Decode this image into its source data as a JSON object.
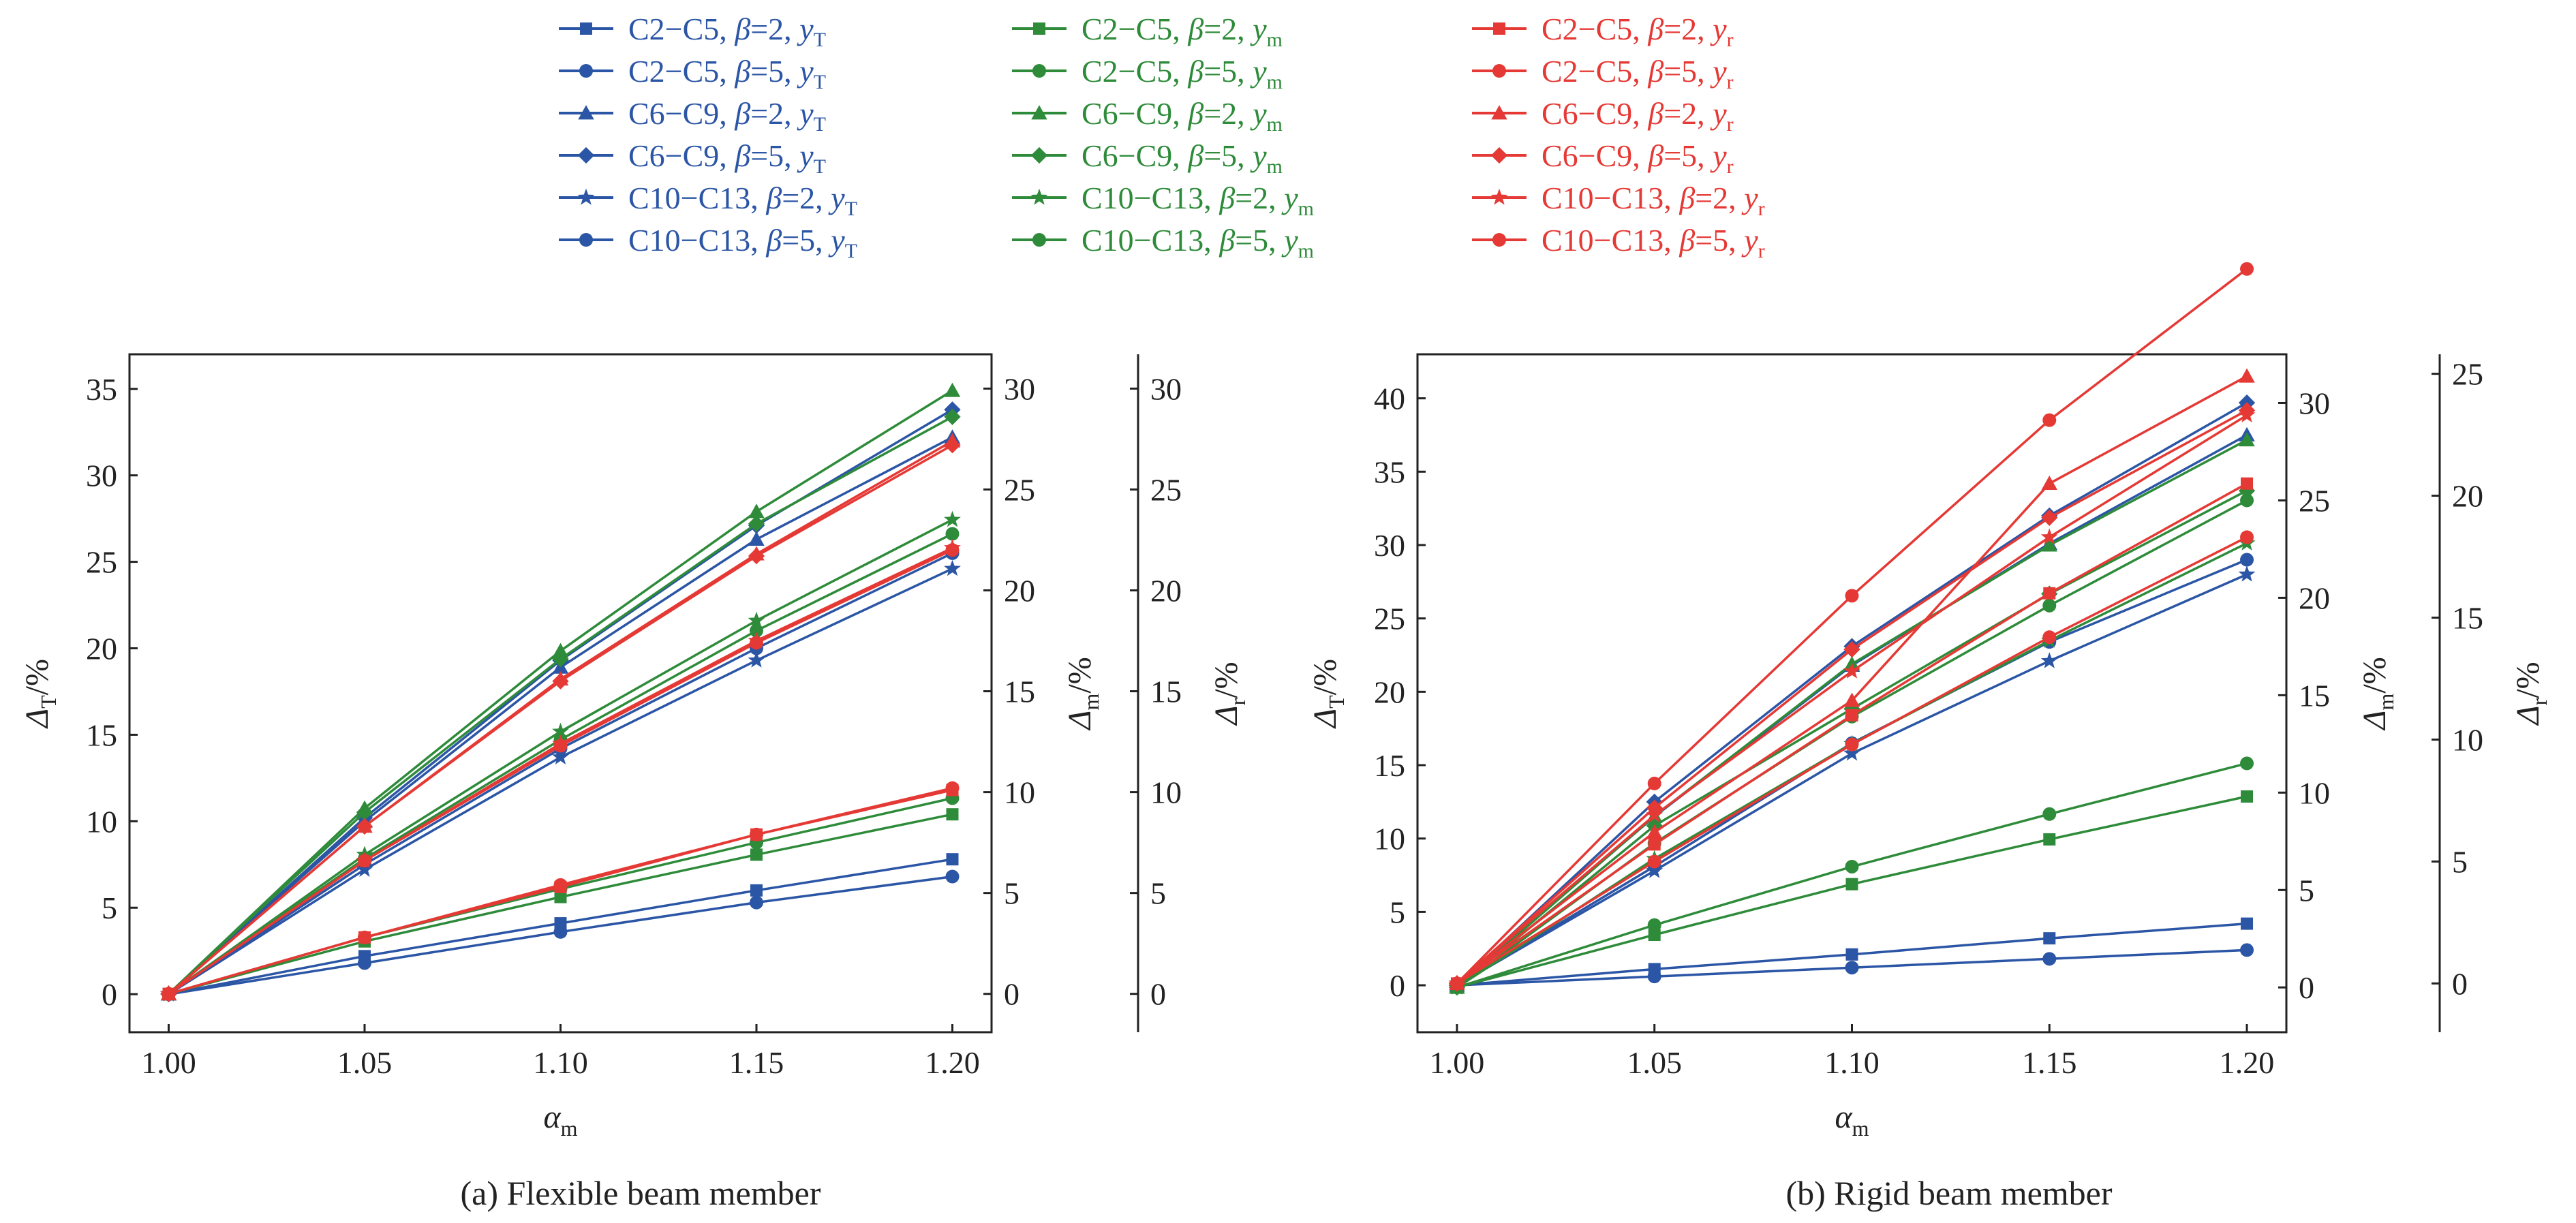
{
  "colors": {
    "T": "#2b55a5",
    "m": "#2e8b3a",
    "r": "#e53935",
    "axis": "#222222"
  },
  "legend": {
    "columns": [
      {
        "color_key": "T",
        "entries": [
          {
            "label": "C2−C5, β=2, y",
            "sub": "T",
            "marker": "square"
          },
          {
            "label": "C2−C5, β=5, y",
            "sub": "T",
            "marker": "circle"
          },
          {
            "label": "C6−C9, β=2, y",
            "sub": "T",
            "marker": "triangle"
          },
          {
            "label": "C6−C9, β=5, y",
            "sub": "T",
            "marker": "diamond"
          },
          {
            "label": "C10−C13, β=2, y",
            "sub": "T",
            "marker": "star"
          },
          {
            "label": "C10−C13, β=5, y",
            "sub": "T",
            "marker": "circle"
          }
        ]
      },
      {
        "color_key": "m",
        "entries": [
          {
            "label": "C2−C5, β=2, y",
            "sub": "m",
            "marker": "square"
          },
          {
            "label": "C2−C5, β=5, y",
            "sub": "m",
            "marker": "circle"
          },
          {
            "label": "C6−C9, β=2, y",
            "sub": "m",
            "marker": "triangle"
          },
          {
            "label": "C6−C9, β=5, y",
            "sub": "m",
            "marker": "diamond"
          },
          {
            "label": "C10−C13, β=2, y",
            "sub": "m",
            "marker": "star"
          },
          {
            "label": "C10−C13, β=5, y",
            "sub": "m",
            "marker": "circle"
          }
        ]
      },
      {
        "color_key": "r",
        "entries": [
          {
            "label": "C2−C5, β=2, y",
            "sub": "r",
            "marker": "square"
          },
          {
            "label": "C2−C5, β=5, y",
            "sub": "r",
            "marker": "circle"
          },
          {
            "label": "C6−C9, β=2, y",
            "sub": "r",
            "marker": "triangle"
          },
          {
            "label": "C6−C9, β=5, y",
            "sub": "r",
            "marker": "diamond"
          },
          {
            "label": "C10−C13, β=2, y",
            "sub": "r",
            "marker": "star"
          },
          {
            "label": "C10−C13, β=5, y",
            "sub": "r",
            "marker": "circle"
          }
        ]
      }
    ]
  },
  "chart_data": [
    {
      "type": "line",
      "caption": "(a) Flexible beam member",
      "x": [
        1.0,
        1.05,
        1.1,
        1.15,
        1.2
      ],
      "xticks": [
        "1.00",
        "1.05",
        "1.10",
        "1.15",
        "1.20"
      ],
      "xlabel": {
        "main": "α",
        "sub": "m"
      },
      "xlim": [
        0.99,
        1.21
      ],
      "axes": [
        {
          "key": "T",
          "label": {
            "main": "Δ",
            "sub": "T",
            "unit": "/%"
          },
          "ylim": [
            -2.2,
            37
          ],
          "ticks": [
            0,
            5,
            10,
            15,
            20,
            25,
            30,
            35
          ]
        },
        {
          "key": "m",
          "label": {
            "main": "Δ",
            "sub": "m",
            "unit": "/%"
          },
          "ylim": [
            -1.9,
            31.7
          ],
          "ticks": [
            0,
            5,
            10,
            15,
            20,
            25,
            30
          ]
        },
        {
          "key": "r",
          "label": {
            "main": "Δ",
            "sub": "r",
            "unit": "/%"
          },
          "ylim": [
            -1.9,
            31.7
          ],
          "ticks": [
            0,
            5,
            10,
            15,
            20,
            25,
            30
          ]
        }
      ],
      "series": [
        {
          "axis": "T",
          "marker": "square",
          "values": [
            0,
            2.2,
            4.1,
            6.0,
            7.8
          ]
        },
        {
          "axis": "T",
          "marker": "circle",
          "values": [
            0,
            1.8,
            3.6,
            5.3,
            6.8
          ]
        },
        {
          "axis": "T",
          "marker": "triangle",
          "values": [
            0,
            10.0,
            18.9,
            26.3,
            32.2
          ]
        },
        {
          "axis": "T",
          "marker": "diamond",
          "values": [
            0,
            10.2,
            19.3,
            27.1,
            33.8
          ]
        },
        {
          "axis": "T",
          "marker": "star",
          "values": [
            0,
            7.2,
            13.7,
            19.3,
            24.6
          ]
        },
        {
          "axis": "T",
          "marker": "circle",
          "values": [
            0,
            7.5,
            14.2,
            20.0,
            25.5
          ]
        },
        {
          "axis": "m",
          "marker": "square",
          "values": [
            0,
            2.6,
            4.8,
            6.9,
            8.9
          ]
        },
        {
          "axis": "m",
          "marker": "circle",
          "values": [
            0,
            2.8,
            5.2,
            7.5,
            9.7
          ]
        },
        {
          "axis": "m",
          "marker": "triangle",
          "values": [
            0,
            9.2,
            17.0,
            23.9,
            29.9
          ]
        },
        {
          "axis": "m",
          "marker": "diamond",
          "values": [
            0,
            9.0,
            16.6,
            23.3,
            28.6
          ]
        },
        {
          "axis": "m",
          "marker": "star",
          "values": [
            0,
            6.9,
            13.0,
            18.5,
            23.5
          ]
        },
        {
          "axis": "m",
          "marker": "circle",
          "values": [
            0,
            6.7,
            12.6,
            18.0,
            22.8
          ]
        },
        {
          "axis": "r",
          "marker": "square",
          "values": [
            0,
            2.8,
            5.3,
            7.9,
            10.1
          ]
        },
        {
          "axis": "r",
          "marker": "circle",
          "values": [
            0,
            2.8,
            5.4,
            7.9,
            10.2
          ]
        },
        {
          "axis": "r",
          "marker": "triangle",
          "values": [
            0,
            8.3,
            15.6,
            21.8,
            27.4
          ]
        },
        {
          "axis": "r",
          "marker": "diamond",
          "values": [
            0,
            8.3,
            15.5,
            21.7,
            27.2
          ]
        },
        {
          "axis": "r",
          "marker": "star",
          "values": [
            0,
            6.6,
            12.4,
            17.5,
            22.1
          ]
        },
        {
          "axis": "r",
          "marker": "circle",
          "values": [
            0,
            6.6,
            12.3,
            17.4,
            22.0
          ]
        }
      ]
    },
    {
      "type": "line",
      "caption": "(b) Rigid beam member",
      "x": [
        1.0,
        1.05,
        1.1,
        1.15,
        1.2
      ],
      "xticks": [
        "1.00",
        "1.05",
        "1.10",
        "1.15",
        "1.20"
      ],
      "xlabel": {
        "main": "α",
        "sub": "m"
      },
      "xlim": [
        0.99,
        1.21
      ],
      "axes": [
        {
          "key": "T",
          "label": {
            "main": "Δ",
            "sub": "T",
            "unit": "/%"
          },
          "ylim": [
            -3.2,
            43
          ],
          "ticks": [
            0,
            5,
            10,
            15,
            20,
            25,
            30,
            35,
            40
          ]
        },
        {
          "key": "m",
          "label": {
            "main": "Δ",
            "sub": "m",
            "unit": "/%"
          },
          "ylim": [
            -2.3,
            32.5
          ],
          "ticks": [
            0,
            5,
            10,
            15,
            20,
            25,
            30
          ]
        },
        {
          "key": "r",
          "label": {
            "main": "Δ",
            "sub": "r",
            "unit": "/%"
          },
          "ylim": [
            -2.0,
            25.8
          ],
          "ticks": [
            0,
            5,
            10,
            15,
            20,
            25
          ]
        }
      ],
      "series": [
        {
          "axis": "T",
          "marker": "square",
          "values": [
            0,
            1.1,
            2.1,
            3.2,
            4.2
          ]
        },
        {
          "axis": "T",
          "marker": "circle",
          "values": [
            0,
            0.6,
            1.2,
            1.8,
            2.4
          ]
        },
        {
          "axis": "T",
          "marker": "triangle",
          "values": [
            0,
            11.5,
            21.8,
            30.1,
            37.5
          ]
        },
        {
          "axis": "T",
          "marker": "diamond",
          "values": [
            0,
            12.5,
            23.1,
            32.0,
            39.7
          ]
        },
        {
          "axis": "T",
          "marker": "star",
          "values": [
            0,
            7.8,
            15.8,
            22.1,
            28.0
          ]
        },
        {
          "axis": "T",
          "marker": "circle",
          "values": [
            0,
            8.1,
            16.5,
            23.4,
            29.0
          ]
        },
        {
          "axis": "m",
          "marker": "square",
          "values": [
            0,
            2.7,
            5.3,
            7.6,
            9.8
          ]
        },
        {
          "axis": "m",
          "marker": "circle",
          "values": [
            0,
            3.2,
            6.2,
            8.9,
            11.5
          ]
        },
        {
          "axis": "m",
          "marker": "triangle",
          "values": [
            0,
            8.8,
            16.6,
            22.7,
            28.1
          ]
        },
        {
          "axis": "m",
          "marker": "diamond",
          "values": [
            0,
            8.3,
            14.3,
            20.2,
            25.5
          ]
        },
        {
          "axis": "m",
          "marker": "star",
          "values": [
            0,
            6.6,
            12.5,
            17.8,
            22.8
          ]
        },
        {
          "axis": "m",
          "marker": "circle",
          "values": [
            0,
            7.4,
            13.9,
            19.6,
            25.0
          ]
        },
        {
          "axis": "r",
          "marker": "square",
          "values": [
            0,
            5.7,
            11.0,
            16.0,
            20.5
          ]
        },
        {
          "axis": "r",
          "marker": "circle",
          "values": [
            0,
            5.0,
            9.8,
            14.2,
            18.3
          ]
        },
        {
          "axis": "r",
          "marker": "triangle",
          "values": [
            0,
            6.2,
            11.6,
            20.5,
            24.9
          ]
        },
        {
          "axis": "r",
          "marker": "diamond",
          "values": [
            0,
            7.2,
            13.7,
            19.1,
            23.5
          ]
        },
        {
          "axis": "r",
          "marker": "star",
          "values": [
            0,
            6.9,
            12.8,
            18.3,
            23.3
          ]
        },
        {
          "axis": "r",
          "marker": "circle",
          "values": [
            0,
            8.2,
            15.9,
            23.1,
            29.3
          ]
        }
      ]
    }
  ]
}
